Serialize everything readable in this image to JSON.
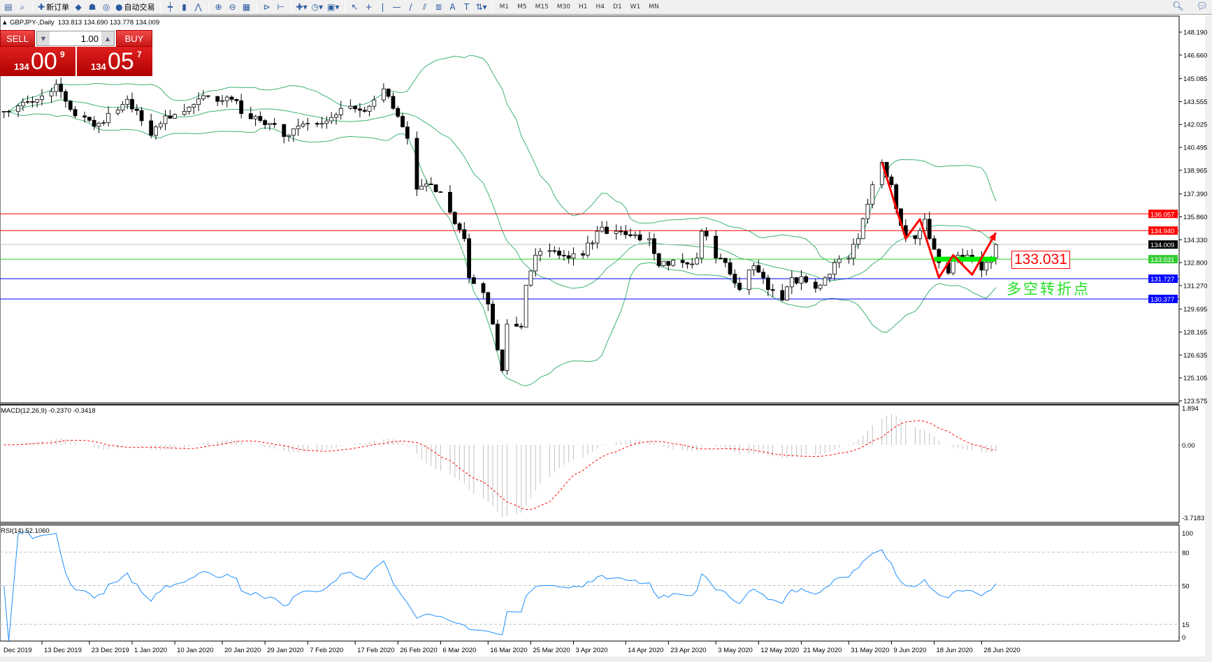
{
  "toolbar": {
    "items": [
      {
        "icon": "new-chart-icon",
        "glyph": "▤"
      },
      {
        "icon": "zoom-window-icon",
        "glyph": "⌕"
      },
      {
        "sep": true
      },
      {
        "icon": "new-order-icon",
        "glyph": "✚",
        "label": "新订单"
      },
      {
        "icon": "metaeditor-icon",
        "glyph": "◆"
      },
      {
        "icon": "navigator-icon",
        "glyph": "☗"
      },
      {
        "icon": "signal-icon",
        "glyph": "◎"
      },
      {
        "icon": "autotrading-icon",
        "glyph": "●",
        "label": "自动交易"
      },
      {
        "sep": true
      },
      {
        "icon": "bar-chart-icon",
        "glyph": "┿"
      },
      {
        "icon": "candlestick-icon",
        "glyph": "▮"
      },
      {
        "icon": "line-chart-icon",
        "glyph": "⋀"
      },
      {
        "sep": true
      },
      {
        "icon": "zoom-in-icon",
        "glyph": "⊕"
      },
      {
        "icon": "zoom-out-icon",
        "glyph": "⊖"
      },
      {
        "icon": "tile-windows-icon",
        "glyph": "▦"
      },
      {
        "sep": true
      },
      {
        "icon": "auto-scroll-icon",
        "glyph": "⊳"
      },
      {
        "icon": "chart-shift-icon",
        "glyph": "⊢"
      },
      {
        "sep": true
      },
      {
        "icon": "indicators-icon",
        "glyph": "✚▾"
      },
      {
        "icon": "periods-icon",
        "glyph": "◷▾"
      },
      {
        "icon": "templates-icon",
        "glyph": "▣▾"
      },
      {
        "sep": true
      },
      {
        "icon": "cursor-icon",
        "glyph": "↖"
      },
      {
        "icon": "crosshair-icon",
        "glyph": "+"
      },
      {
        "icon": "vertical-line-icon",
        "glyph": "|"
      },
      {
        "icon": "horizontal-line-icon",
        "glyph": "—"
      },
      {
        "icon": "trendline-icon",
        "glyph": "/"
      },
      {
        "icon": "equidistant-channel-icon",
        "glyph": "⫽"
      },
      {
        "icon": "fibonacci-icon",
        "glyph": "≣"
      },
      {
        "icon": "text-icon",
        "glyph": "A"
      },
      {
        "icon": "text-label-icon",
        "glyph": "T"
      },
      {
        "icon": "arrows-icon",
        "glyph": "⇅▾"
      },
      {
        "sep": true
      }
    ],
    "timeframes": [
      "M1",
      "M5",
      "M15",
      "M30",
      "H1",
      "H4",
      "D1",
      "W1",
      "MN"
    ],
    "right_icons": [
      {
        "icon": "search-icon",
        "glyph": "🔍︎"
      },
      {
        "icon": "chat-icon",
        "glyph": "💬︎"
      }
    ]
  },
  "chart_info": {
    "arrow": "▲",
    "symbol": "GBPJPY-,Daily",
    "open": "133.813",
    "high": "134.690",
    "low": "133.778",
    "close": "134.009"
  },
  "trade_panel": {
    "sell_label": "SELL",
    "buy_label": "BUY",
    "lot": "1.00",
    "sell_price": {
      "small": "134",
      "big": "00",
      "pip": "9"
    },
    "buy_price": {
      "small": "134",
      "big": "05",
      "pip": "7"
    }
  },
  "price_axis": [
    "148.190",
    "146.660",
    "145.085",
    "143.555",
    "142.025",
    "140.495",
    "138.965",
    "137.390",
    "135.860",
    "134.330",
    "132.800",
    "131.270",
    "129.695",
    "128.165",
    "126.635",
    "125.105",
    "123.575"
  ],
  "levels": [
    {
      "value": "136.057",
      "color": "#ff0000",
      "label_bg": "#ff0000"
    },
    {
      "value": "134.940",
      "color": "#ff0000",
      "label_bg": "#ff0000"
    },
    {
      "value": "134.009",
      "color": "#c0c0c0",
      "label_bg": "#000000"
    },
    {
      "value": "133.031",
      "color": "#32cd32",
      "label_bg": "#32cd32"
    },
    {
      "value": "131.727",
      "color": "#0000ff",
      "label_bg": "#0000ff"
    },
    {
      "value": "130.377",
      "color": "#0000ff",
      "label_bg": "#0000ff"
    }
  ],
  "annotation": {
    "label": "133.031",
    "text": "多空转折点",
    "box_color": "#ff0000",
    "text_color": "#22e022",
    "pivot": 133.031,
    "pivot_from": "2020-06-18",
    "pivot_to": "2020-07-01"
  },
  "macd": {
    "title": "MACD(12,26,9) -0.2370 -0.3418",
    "axis": [
      "1.894",
      "0.00",
      "-3.7183"
    ],
    "hist_color": "#c0c0c0",
    "signal_color": "#ff0000"
  },
  "rsi": {
    "title": "RSI(14) 52.1060",
    "axis": [
      "100",
      "80",
      "50",
      "15",
      "0"
    ],
    "color": "#1e90ff"
  },
  "date_axis": [
    {
      "label": "Dec 2019",
      "date": ""
    },
    {
      "label": "13 Dec 2019",
      "date": "2019-12-13"
    },
    {
      "label": "23 Dec 2019",
      "date": "2019-12-23"
    },
    {
      "label": "1 Jan 2020",
      "date": "2020-01-01"
    },
    {
      "label": "10 Jan 2020",
      "date": "2020-01-10"
    },
    {
      "label": "20 Jan 2020",
      "date": "2020-01-20"
    },
    {
      "label": "29 Jan 2020",
      "date": "2020-01-29"
    },
    {
      "label": "7 Feb 2020",
      "date": "2020-02-07"
    },
    {
      "label": "17 Feb 2020",
      "date": "2020-02-17"
    },
    {
      "label": "26 Feb 2020",
      "date": "2020-02-26"
    },
    {
      "label": "6 Mar 2020",
      "date": "2020-03-06"
    },
    {
      "label": "16 Mar 2020",
      "date": "2020-03-16"
    },
    {
      "label": "25 Mar 2020",
      "date": "2020-03-25"
    },
    {
      "label": "3 Apr 2020",
      "date": "2020-04-03"
    },
    {
      "label": "14 Apr 2020",
      "date": "2020-04-14"
    },
    {
      "label": "23 Apr 2020",
      "date": "2020-04-23"
    },
    {
      "label": "3 May 2020",
      "date": "2020-05-03"
    },
    {
      "label": "12 May 2020",
      "date": "2020-05-12"
    },
    {
      "label": "21 May 2020",
      "date": "2020-05-21"
    },
    {
      "label": "31 May 2020",
      "date": "2020-05-31"
    },
    {
      "label": "9 Jun 2020",
      "date": "2020-06-09"
    },
    {
      "label": "18 Jun 2020",
      "date": "2020-06-18"
    },
    {
      "label": "28 Jun 2020",
      "date": "2020-06-28"
    }
  ],
  "chart_data": {
    "type": "candlestick",
    "symbol": "GBPJPY",
    "timeframe": "Daily",
    "ylim": [
      123.575,
      148.19
    ],
    "close_keypoints": [
      [
        "2019-12-05",
        142.9
      ],
      [
        "2019-12-12",
        143.7
      ],
      [
        "2019-12-16",
        144.7
      ],
      [
        "2019-12-20",
        142.6
      ],
      [
        "2019-12-24",
        141.9
      ],
      [
        "2019-12-31",
        143.7
      ],
      [
        "2020-01-05",
        141.3
      ],
      [
        "2020-01-08",
        142.6
      ],
      [
        "2020-01-12",
        142.9
      ],
      [
        "2020-01-17",
        143.9
      ],
      [
        "2020-01-22",
        143.7
      ],
      [
        "2020-01-26",
        142.4
      ],
      [
        "2020-01-30",
        142.1
      ],
      [
        "2020-02-03",
        141.3
      ],
      [
        "2020-02-07",
        142.1
      ],
      [
        "2020-02-10",
        142.1
      ],
      [
        "2020-02-14",
        143.1
      ],
      [
        "2020-02-19",
        142.9
      ],
      [
        "2020-02-23",
        144.4
      ],
      [
        "2020-02-25",
        143.1
      ],
      [
        "2020-02-28",
        141.1
      ],
      [
        "2020-03-01",
        137.7
      ],
      [
        "2020-03-04",
        138.0
      ],
      [
        "2020-03-06",
        137.5
      ],
      [
        "2020-03-09",
        135.4
      ],
      [
        "2020-03-11",
        134.4
      ],
      [
        "2020-03-12",
        131.8
      ],
      [
        "2020-03-15",
        130.8
      ],
      [
        "2020-03-17",
        128.7
      ],
      [
        "2020-03-19",
        125.6
      ],
      [
        "2020-03-20",
        128.7
      ],
      [
        "2020-03-23",
        128.5
      ],
      [
        "2020-03-24",
        131.3
      ],
      [
        "2020-03-26",
        133.3
      ],
      [
        "2020-03-29",
        133.6
      ],
      [
        "2020-04-02",
        133.1
      ],
      [
        "2020-04-05",
        133.3
      ],
      [
        "2020-04-08",
        134.9
      ],
      [
        "2020-04-12",
        134.9
      ],
      [
        "2020-04-15",
        134.6
      ],
      [
        "2020-04-19",
        134.4
      ],
      [
        "2020-04-21",
        132.6
      ],
      [
        "2020-04-26",
        132.8
      ],
      [
        "2020-04-29",
        133.1
      ],
      [
        "2020-04-30",
        134.9
      ],
      [
        "2020-05-03",
        133.1
      ],
      [
        "2020-05-05",
        132.8
      ],
      [
        "2020-05-08",
        131.0
      ],
      [
        "2020-05-11",
        132.6
      ],
      [
        "2020-05-14",
        131.0
      ],
      [
        "2020-05-17",
        130.3
      ],
      [
        "2020-05-19",
        131.8
      ],
      [
        "2020-05-22",
        131.5
      ],
      [
        "2020-05-25",
        131.3
      ],
      [
        "2020-05-28",
        132.8
      ],
      [
        "2020-05-31",
        133.1
      ],
      [
        "2020-06-02",
        134.4
      ],
      [
        "2020-06-04",
        136.7
      ],
      [
        "2020-06-05",
        138.0
      ],
      [
        "2020-06-07",
        139.5
      ],
      [
        "2020-06-09",
        138.0
      ],
      [
        "2020-06-10",
        136.4
      ],
      [
        "2020-06-12",
        134.6
      ],
      [
        "2020-06-14",
        134.4
      ],
      [
        "2020-06-16",
        135.7
      ],
      [
        "2020-06-17",
        134.4
      ],
      [
        "2020-06-19",
        132.8
      ],
      [
        "2020-06-21",
        132.1
      ],
      [
        "2020-06-23",
        133.3
      ],
      [
        "2020-06-25",
        133.3
      ],
      [
        "2020-06-28",
        132.3
      ],
      [
        "2020-06-30",
        133.1
      ],
      [
        "2020-07-01",
        134.009
      ]
    ],
    "overlay_path": [
      [
        "2020-06-07",
        139.5
      ],
      [
        "2020-06-12",
        134.4
      ],
      [
        "2020-06-15",
        135.7
      ],
      [
        "2020-06-19",
        131.8
      ],
      [
        "2020-06-22",
        133.3
      ],
      [
        "2020-06-26",
        132.0
      ],
      [
        "2020-07-01",
        134.8
      ]
    ],
    "indicators": [
      "Bollinger Bands(20,2)",
      "MACD(12,26,9)",
      "RSI(14)"
    ],
    "bands_color": "#3cb371",
    "overlay_color": "#ff0000"
  }
}
